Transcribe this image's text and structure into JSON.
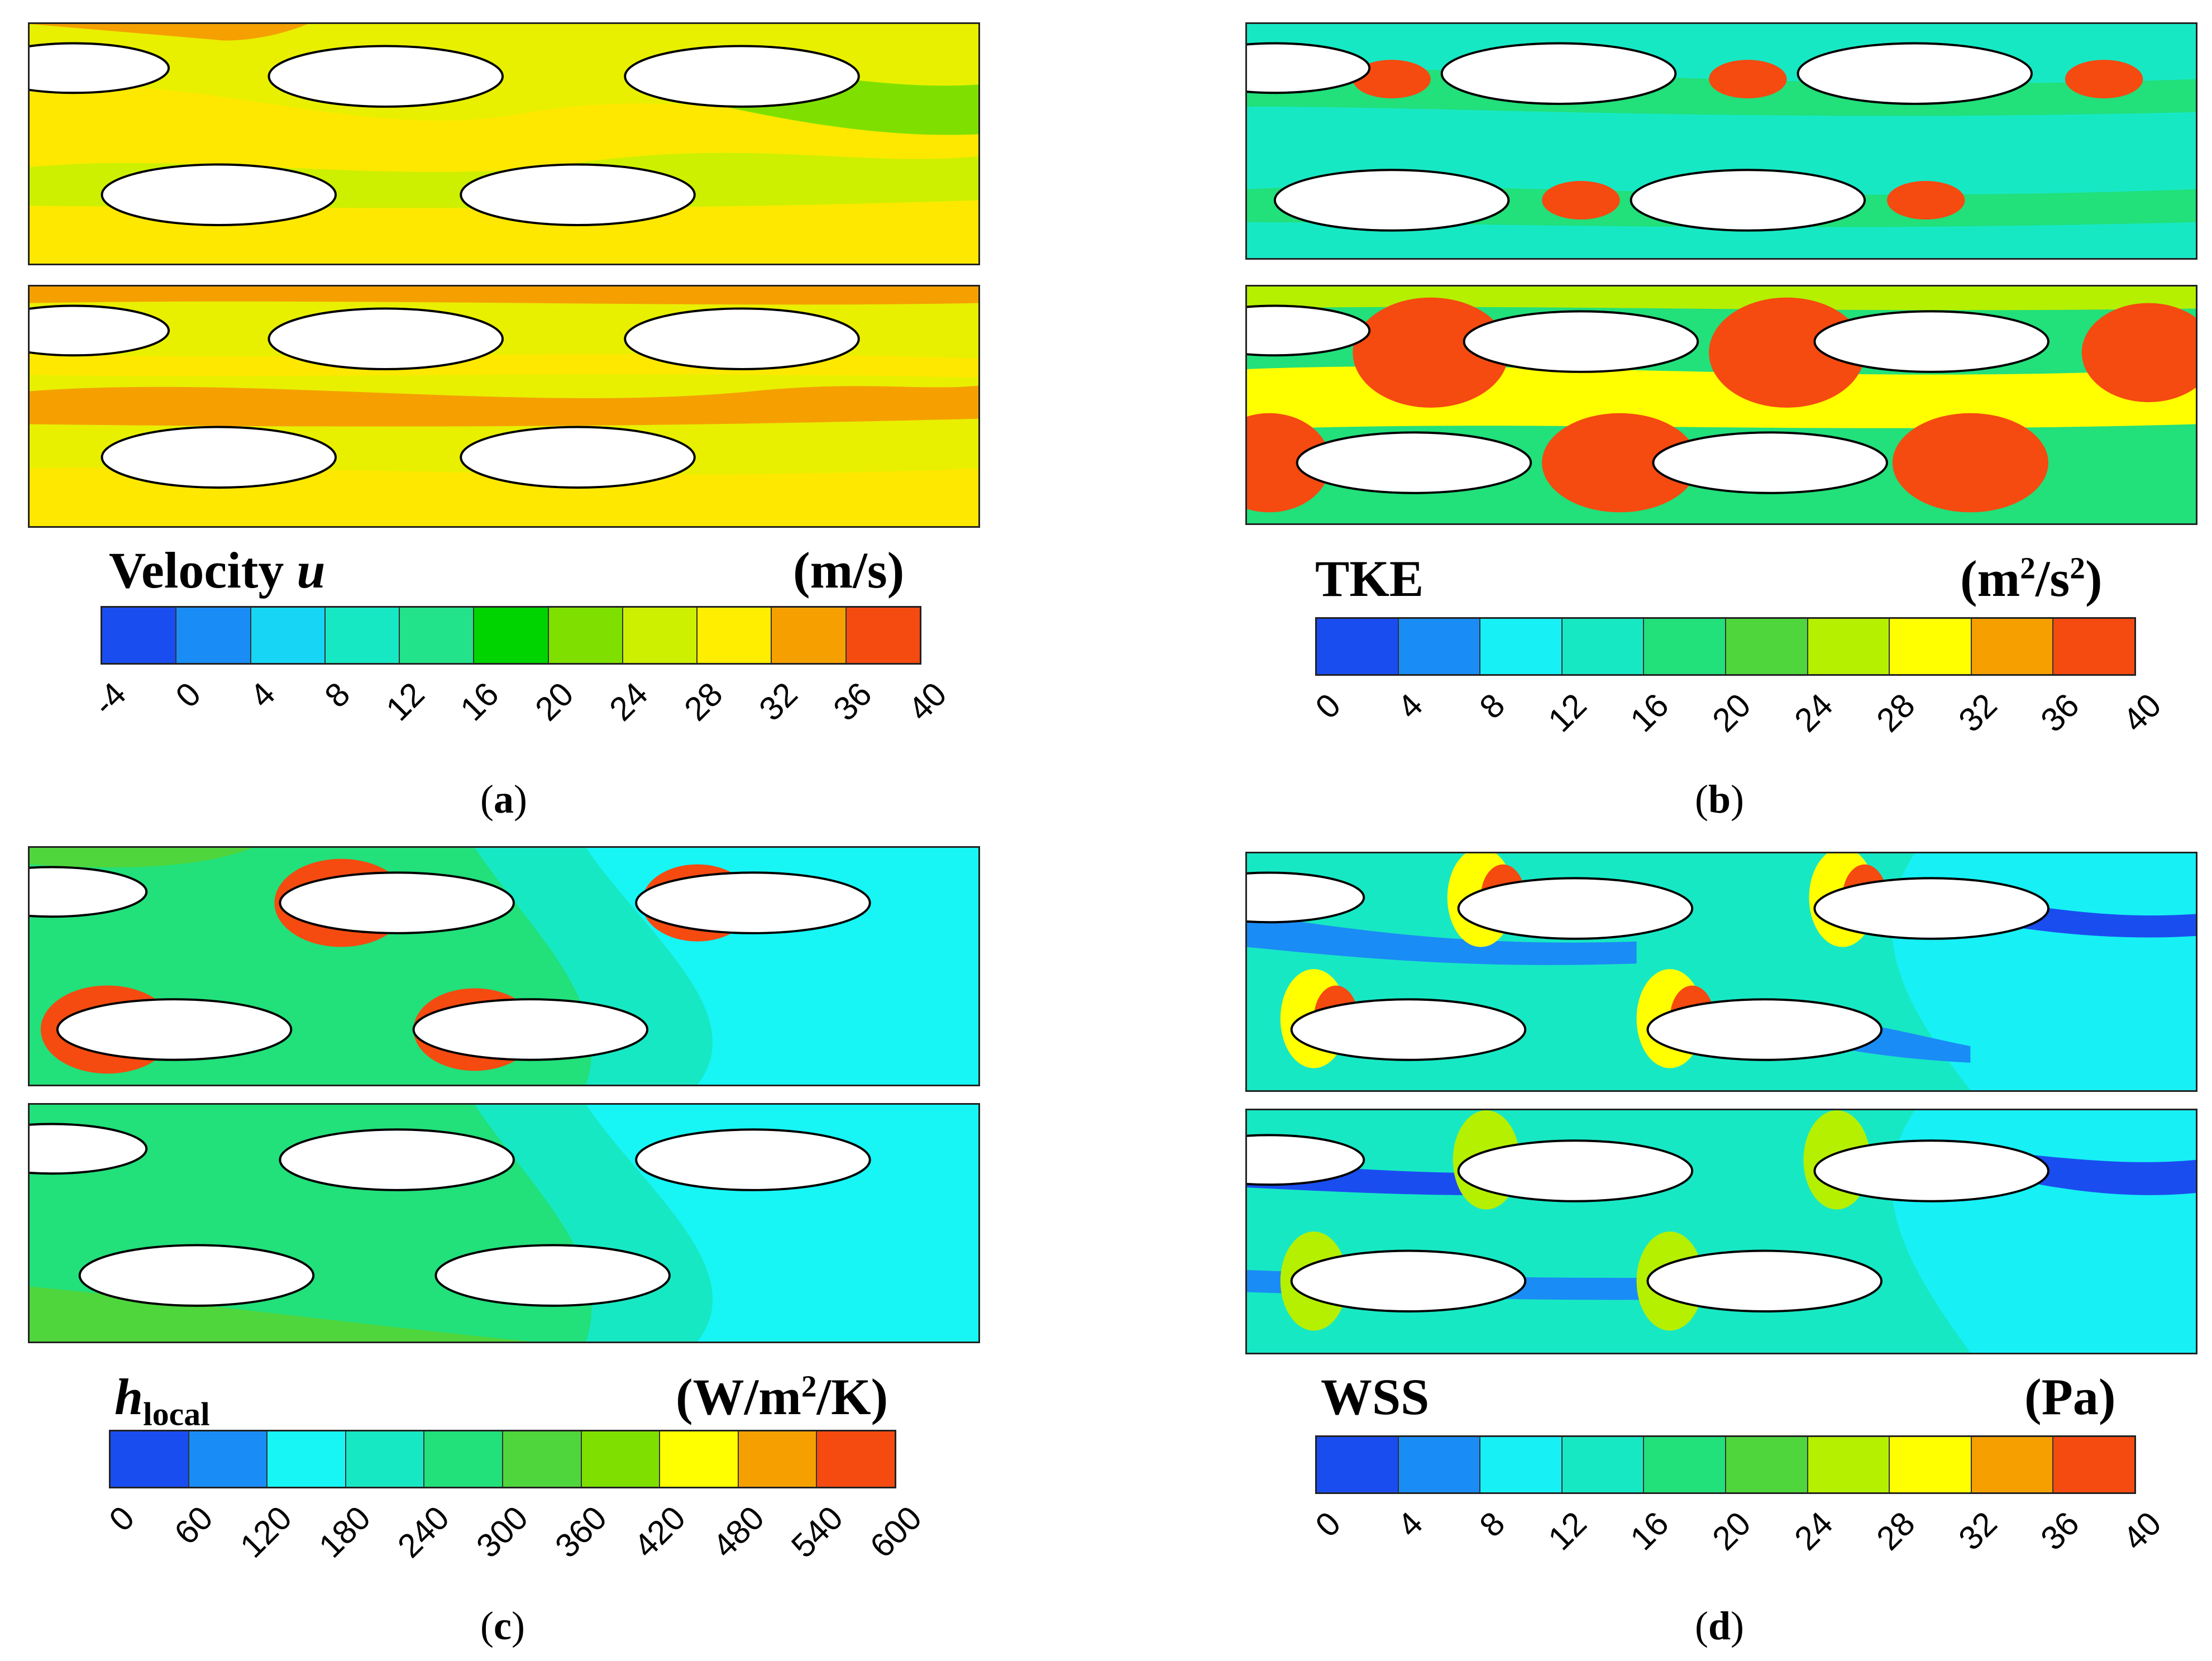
{
  "panels": [
    {
      "id": "a",
      "title_prefix": "Velocity ",
      "title_var": "u",
      "unit": "(m/s)",
      "ticks": [
        "-4",
        "0",
        "4",
        "8",
        "12",
        "16",
        "20",
        "24",
        "28",
        "32",
        "36",
        "40"
      ],
      "colors": [
        "#1a4df0",
        "#1a8cf5",
        "#17d6f5",
        "#17e8c4",
        "#22e38a",
        "#00d400",
        "#7fe000",
        "#cdf000",
        "#ffee00",
        "#f5a000",
        "#f54a10"
      ],
      "caption_open": "(",
      "caption_letter": "a",
      "caption_close": ")"
    },
    {
      "id": "b",
      "title_prefix": "TKE",
      "unit_main": "(m",
      "unit_sup1": "2",
      "unit_mid": "/s",
      "unit_sup2": "2",
      "unit_end": ")",
      "ticks": [
        "0",
        "4",
        "8",
        "12",
        "16",
        "20",
        "24",
        "28",
        "32",
        "36",
        "40"
      ],
      "colors": [
        "#1a4df0",
        "#1a8cf5",
        "#17f0f5",
        "#17e8c4",
        "#22e07a",
        "#4fd63c",
        "#b5f000",
        "#ffff00",
        "#f5a000",
        "#f54a10"
      ],
      "caption_open": "(",
      "caption_letter": "b",
      "caption_close": ")"
    },
    {
      "id": "c",
      "title_var": "h",
      "title_sub": "local",
      "unit_main": "(W/m",
      "unit_sup1": "2",
      "unit_end": "/K)",
      "ticks": [
        "0",
        "60",
        "120",
        "180",
        "240",
        "300",
        "360",
        "420",
        "480",
        "540",
        "600"
      ],
      "colors": [
        "#1a4df0",
        "#1a8cf5",
        "#17f5f5",
        "#17e8c4",
        "#22e07a",
        "#4fd63c",
        "#7fe000",
        "#ffff00",
        "#f5a000",
        "#f54a10"
      ],
      "caption_open": "(",
      "caption_letter": "c",
      "caption_close": ")"
    },
    {
      "id": "d",
      "title_prefix": "WSS",
      "unit": "(Pa)",
      "ticks": [
        "0",
        "4",
        "8",
        "12",
        "16",
        "20",
        "24",
        "28",
        "32",
        "36",
        "40"
      ],
      "colors": [
        "#1a4df0",
        "#1a8cf5",
        "#17f0f5",
        "#17e8c4",
        "#22e07a",
        "#4fd63c",
        "#b5f000",
        "#ffff00",
        "#f5a000",
        "#f54a10"
      ],
      "caption_open": "(",
      "caption_letter": "d",
      "caption_close": ")"
    }
  ]
}
